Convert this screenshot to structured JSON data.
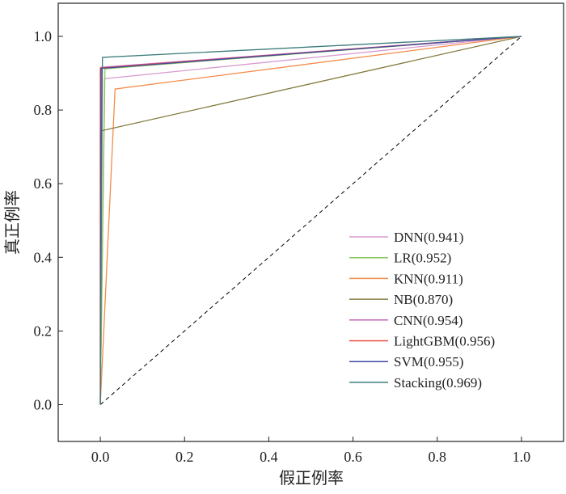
{
  "chart_data": {
    "type": "line",
    "title": "",
    "xlabel": "假正例率",
    "ylabel": "真正例率",
    "xlim": [
      -0.1,
      1.1
    ],
    "ylim": [
      -0.1,
      1.09
    ],
    "xticks": [
      "0.0",
      "0.2",
      "0.4",
      "0.6",
      "0.8",
      "1.0"
    ],
    "yticks": [
      "0.0",
      "0.2",
      "0.4",
      "0.6",
      "0.8",
      "1.0"
    ],
    "xtick_values": [
      0,
      0.2,
      0.4,
      0.6,
      0.8,
      1.0
    ],
    "ytick_values": [
      0,
      0.2,
      0.4,
      0.6,
      0.8,
      1.0
    ],
    "grid": false,
    "legend_position": "lower-right",
    "diagonal": {
      "x": [
        0,
        1
      ],
      "y": [
        0,
        1
      ],
      "style": "dashed",
      "color": "#000000"
    },
    "series": [
      {
        "name": "DNN(0.941)",
        "color": "#d89cd0",
        "x": [
          0,
          0.01,
          1
        ],
        "y": [
          0,
          0.885,
          1
        ]
      },
      {
        "name": "LR(0.952)",
        "color": "#8cc65a",
        "x": [
          0,
          0.011,
          1
        ],
        "y": [
          0,
          0.912,
          1
        ]
      },
      {
        "name": "KNN(0.911)",
        "color": "#f48c48",
        "x": [
          0,
          0.035,
          1
        ],
        "y": [
          0,
          0.857,
          1
        ]
      },
      {
        "name": "NB(0.870)",
        "color": "#837a3c",
        "x": [
          0,
          0.0,
          1
        ],
        "y": [
          0,
          0.743,
          1
        ]
      },
      {
        "name": "CNN(0.954)",
        "color": "#c062b4",
        "x": [
          0,
          0.002,
          1
        ],
        "y": [
          0,
          0.916,
          1
        ]
      },
      {
        "name": "LightGBM(0.956)",
        "color": "#e84a3c",
        "x": [
          0,
          0.0,
          1
        ],
        "y": [
          0,
          0.914,
          1
        ]
      },
      {
        "name": "SVM(0.955)",
        "color": "#4048a0",
        "x": [
          0,
          0.002,
          1
        ],
        "y": [
          0,
          0.913,
          1
        ]
      },
      {
        "name": "Stacking(0.969)",
        "color": "#3f7c7c",
        "x": [
          0,
          0.005,
          1
        ],
        "y": [
          0,
          0.943,
          1
        ]
      }
    ]
  }
}
